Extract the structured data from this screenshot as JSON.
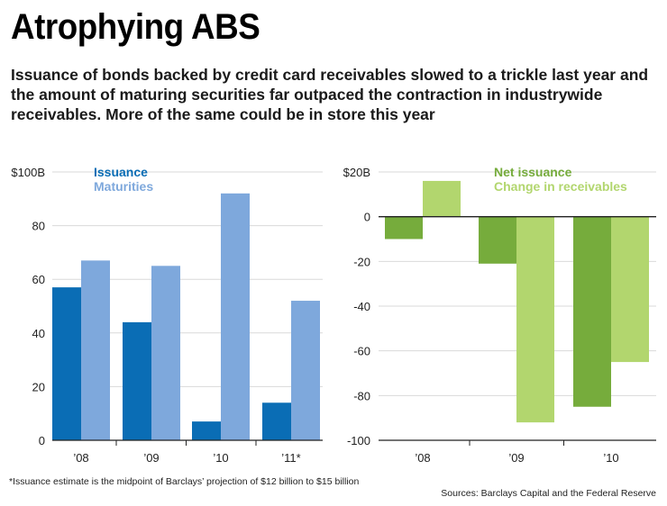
{
  "title": "Atrophying ABS",
  "subtitle": "Issuance of bonds backed by credit card receivables slowed to a trickle last year and the amount of maturing securities far outpaced the contraction in industrywide receivables. More of the same could be in store this year",
  "footnote": "*Issuance estimate is the midpoint of Barclays’ projection of $12 billion to $15 billion",
  "source": "Sources: Barclays Capital and the Federal Reserve",
  "colors": {
    "issuance": "#0a6db5",
    "maturities": "#7ea8dc",
    "net_issuance": "#76ac3c",
    "change_receivables": "#b2d66e"
  },
  "chart_data": [
    {
      "type": "bar",
      "categories": [
        "’08",
        "’09",
        "’10",
        "’11*"
      ],
      "series": [
        {
          "name": "Issuance",
          "values": [
            57,
            44,
            7,
            14
          ]
        },
        {
          "name": "Maturities",
          "values": [
            67,
            65,
            92,
            52
          ]
        }
      ],
      "ylim": [
        0,
        100
      ],
      "yticks": [
        "$100B",
        "80",
        "60",
        "40",
        "20",
        "0"
      ],
      "legend": "top-left"
    },
    {
      "type": "bar",
      "categories": [
        "’08",
        "’09",
        "’10"
      ],
      "series": [
        {
          "name": "Net issuance",
          "values": [
            -10,
            -21,
            -85
          ]
        },
        {
          "name": "Change in receivables",
          "values": [
            16,
            -92,
            -65
          ]
        }
      ],
      "ylim": [
        -100,
        20
      ],
      "yticks": [
        "$20B",
        "0",
        "-20",
        "-40",
        "-60",
        "-80",
        "-100"
      ],
      "legend": "top-center"
    }
  ]
}
